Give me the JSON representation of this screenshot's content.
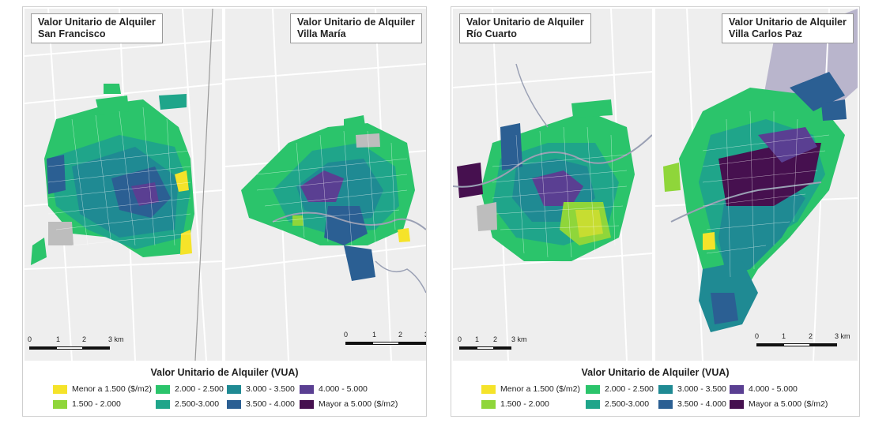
{
  "panels": [
    {
      "maps": [
        {
          "title_line1": "Valor Unitario de Alquiler",
          "title_line2": "San Francisco"
        },
        {
          "title_line1": "Valor Unitario de Alquiler",
          "title_line2": "Villa María"
        }
      ],
      "scale_labels": [
        "0",
        "1",
        "2",
        "3 km"
      ]
    },
    {
      "maps": [
        {
          "title_line1": "Valor Unitario de Alquiler",
          "title_line2": "Río Cuarto"
        },
        {
          "title_line1": "Valor Unitario de Alquiler",
          "title_line2": "Villa Carlos Paz"
        }
      ],
      "scale_labels": [
        "0",
        "1",
        "2",
        "3 km"
      ]
    }
  ],
  "legend": {
    "title": "Valor Unitario de Alquiler (VUA)",
    "classes": [
      {
        "label": "Menor a 1.500 ($/m2)",
        "color": "#f5e32a"
      },
      {
        "label": "1.500 - 2.000",
        "color": "#8fd63a"
      },
      {
        "label": "2.000 - 2.500",
        "color": "#2bc46b"
      },
      {
        "label": "2.500-3.000",
        "color": "#1fa58a"
      },
      {
        "label": "3.000 - 3.500",
        "color": "#1f8a93"
      },
      {
        "label": "3.500 - 4.000",
        "color": "#2b5f93"
      },
      {
        "label": "4.000 - 5.000",
        "color": "#5a3f92"
      },
      {
        "label": "Mayor a 5.000 ($/m2)",
        "color": "#46104f"
      }
    ]
  },
  "colors": {
    "background": "#eeeeee",
    "gray_block": "#bdbdbd",
    "road": "#ffffff",
    "river": "#9aa0b4",
    "lake": "#b9b5cc"
  }
}
